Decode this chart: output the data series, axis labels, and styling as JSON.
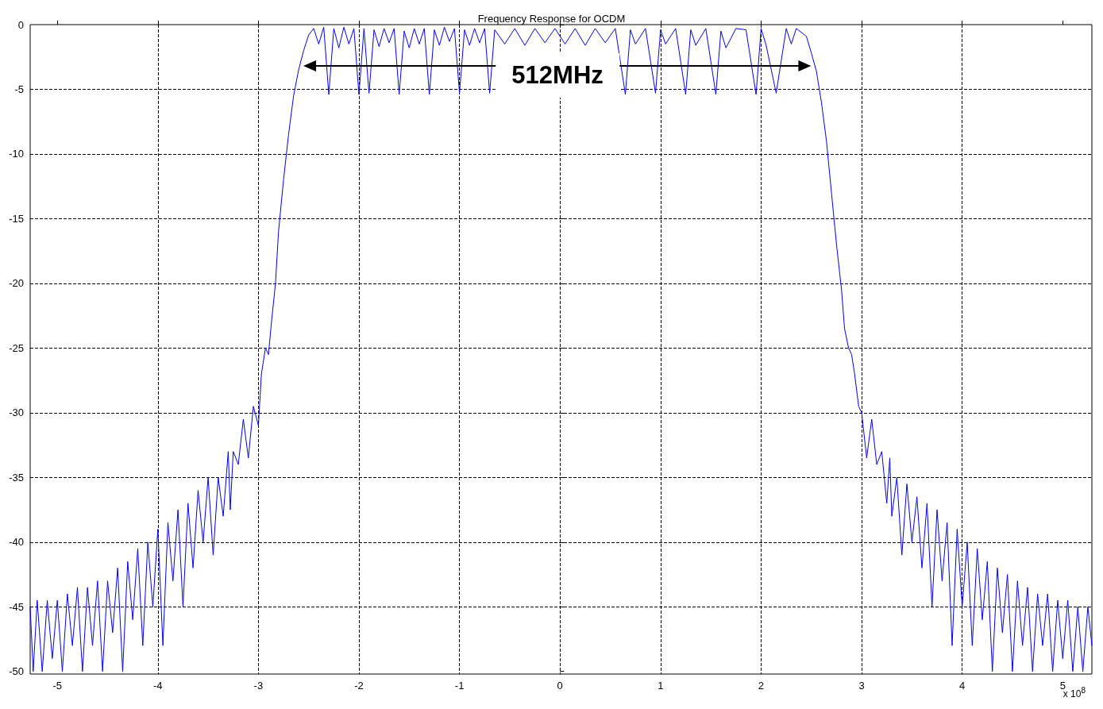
{
  "chart_data": {
    "type": "line",
    "title": "Frequency Response for OCDM",
    "x": [
      -5.27,
      -5.24,
      -5.2,
      -5.15,
      -5.1,
      -5.05,
      -5.0,
      -4.95,
      -4.9,
      -4.85,
      -4.8,
      -4.75,
      -4.7,
      -4.65,
      -4.6,
      -4.55,
      -4.5,
      -4.45,
      -4.4,
      -4.35,
      -4.3,
      -4.25,
      -4.2,
      -4.15,
      -4.1,
      -4.05,
      -4.0,
      -3.95,
      -3.9,
      -3.85,
      -3.8,
      -3.75,
      -3.7,
      -3.65,
      -3.6,
      -3.55,
      -3.5,
      -3.45,
      -3.4,
      -3.35,
      -3.3,
      -3.28,
      -3.25,
      -3.2,
      -3.15,
      -3.1,
      -3.05,
      -3.0,
      -2.97,
      -2.93,
      -2.9,
      -2.87,
      -2.83,
      -2.8,
      -2.75,
      -2.7,
      -2.65,
      -2.6,
      -2.55,
      -2.5,
      -2.45,
      -2.4,
      -2.35,
      -2.3,
      -2.25,
      -2.2,
      -2.15,
      -2.1,
      -2.05,
      -2.0,
      -1.95,
      -1.9,
      -1.85,
      -1.8,
      -1.75,
      -1.7,
      -1.65,
      -1.6,
      -1.55,
      -1.5,
      -1.45,
      -1.4,
      -1.35,
      -1.3,
      -1.25,
      -1.2,
      -1.15,
      -1.1,
      -1.05,
      -1.0,
      -0.95,
      -0.9,
      -0.85,
      -0.8,
      -0.75,
      -0.7,
      -0.65,
      -0.55,
      -0.45,
      -0.35,
      -0.25,
      -0.15,
      -0.05,
      0.05,
      0.15,
      0.25,
      0.35,
      0.45,
      0.55,
      0.65,
      0.7,
      0.75,
      0.85,
      0.95,
      1.0,
      1.05,
      1.15,
      1.25,
      1.3,
      1.35,
      1.45,
      1.55,
      1.6,
      1.65,
      1.75,
      1.85,
      1.95,
      2.0,
      2.05,
      2.15,
      2.25,
      2.3,
      2.35,
      2.45,
      2.5,
      2.55,
      2.6,
      2.65,
      2.7,
      2.75,
      2.8,
      2.83,
      2.87,
      2.9,
      2.93,
      2.97,
      3.0,
      3.05,
      3.1,
      3.15,
      3.2,
      3.25,
      3.28,
      3.3,
      3.35,
      3.4,
      3.45,
      3.5,
      3.55,
      3.6,
      3.65,
      3.7,
      3.75,
      3.8,
      3.85,
      3.9,
      3.95,
      4.0,
      4.05,
      4.1,
      4.15,
      4.2,
      4.25,
      4.3,
      4.35,
      4.4,
      4.45,
      4.5,
      4.55,
      4.6,
      4.65,
      4.7,
      4.75,
      4.8,
      4.85,
      4.9,
      4.95,
      5.0,
      5.05,
      5.1,
      5.15,
      5.2,
      5.25,
      5.29
    ],
    "series": [
      {
        "color": "#0000ff",
        "values": [
          -45,
          -50,
          -44.5,
          -50,
          -44.5,
          -49,
          -44.5,
          -50,
          -44,
          -48,
          -43.5,
          -50,
          -43.5,
          -48,
          -43,
          -50,
          -43,
          -47,
          -42,
          -50,
          -41.5,
          -46,
          -40.5,
          -48,
          -40,
          -45,
          -39,
          -48,
          -38.5,
          -43,
          -37.5,
          -45,
          -37,
          -42,
          -36,
          -40,
          -35,
          -41,
          -35,
          -38,
          -33,
          -37.5,
          -33,
          -34,
          -30.5,
          -33.5,
          -29.5,
          -31,
          -27,
          -25,
          -25.5,
          -23,
          -20,
          -16,
          -12,
          -8.5,
          -5.5,
          -3.5,
          -2,
          -0.8,
          -0.3,
          -1.5,
          -0.2,
          -5.4,
          -0.3,
          -1.8,
          -0.2,
          -1.5,
          -0.3,
          -5.4,
          -0.3,
          -5.3,
          -0.4,
          -1.7,
          -0.3,
          -1.4,
          -0.3,
          -5.4,
          -0.5,
          -1.8,
          -0.3,
          -1.5,
          -0.3,
          -5.4,
          -0.4,
          -1.6,
          -0.2,
          -1.3,
          -0.3,
          -5.3,
          -0.4,
          -1.6,
          -0.3,
          -1.4,
          -0.3,
          -5.3,
          -0.4,
          -1.5,
          -0.3,
          -1.6,
          -0.3,
          -1.4,
          -0.3,
          -1.5,
          -0.3,
          -1.6,
          -0.3,
          -1.4,
          -0.3,
          -5.4,
          -0.4,
          -1.5,
          -0.3,
          -5.3,
          -0.4,
          -1.5,
          -0.3,
          -5.4,
          -0.4,
          -1.6,
          -0.3,
          -5.4,
          -0.5,
          -1.8,
          -0.3,
          -0.4,
          -5.4,
          -0.3,
          -1.6,
          -5.3,
          -0.3,
          -1.5,
          -0.3,
          -0.9,
          -2.2,
          -3.6,
          -6,
          -9,
          -13,
          -17,
          -20.5,
          -23.5,
          -25,
          -25.5,
          -27,
          -29.5,
          -30,
          -33.5,
          -30.5,
          -34,
          -33,
          -37,
          -33.5,
          -38,
          -35,
          -41,
          -35.5,
          -40,
          -36.5,
          -42,
          -37,
          -45,
          -37.5,
          -43,
          -38.5,
          -48,
          -39,
          -45,
          -40,
          -48,
          -40.5,
          -46,
          -41.5,
          -50,
          -42,
          -47,
          -42.5,
          -50,
          -43,
          -48,
          -43.5,
          -50,
          -44,
          -48,
          -44,
          -50,
          -44.5,
          -49,
          -44.5,
          -50,
          -45,
          -50,
          -45,
          -48
        ]
      }
    ],
    "xlim": [
      -5.27,
      5.29
    ],
    "ylim": [
      -50.2,
      0
    ],
    "xticks": [
      -5,
      -4,
      -3,
      -2,
      -1,
      0,
      1,
      2,
      3,
      4,
      5
    ],
    "yticks": [
      0,
      -5,
      -10,
      -15,
      -20,
      -25,
      -30,
      -35,
      -40,
      -45,
      -50
    ],
    "grid": true,
    "marker": "none",
    "line_style": "solid",
    "annotations": [
      "512MHz",
      "x 10$^{8}$"
    ]
  }
}
